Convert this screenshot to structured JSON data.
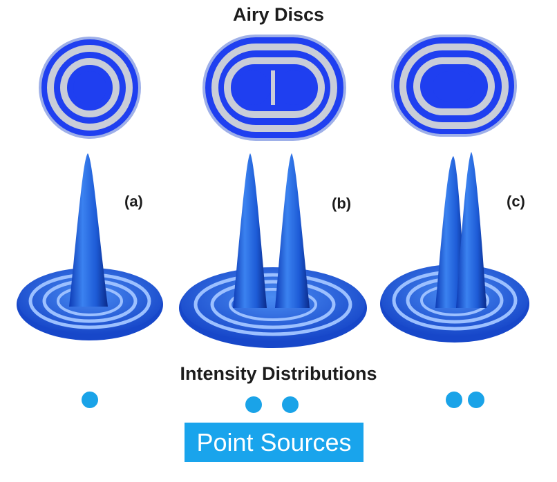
{
  "titles": {
    "airy_discs": "Airy Discs",
    "intensity_distributions": "Intensity Distributions",
    "point_sources": "Point Sources"
  },
  "panels": [
    {
      "label": "(a)",
      "sources": 1
    },
    {
      "label": "(b)",
      "sources": 2
    },
    {
      "label": "(c)",
      "sources": 2
    }
  ],
  "colors": {
    "disc_blue": "#1f3ff0",
    "ring_gray": "#c9cdd8",
    "peak_blue": "#1e5fd8",
    "point_source": "#1aa3e8",
    "label_bg": "#19a4ec"
  }
}
